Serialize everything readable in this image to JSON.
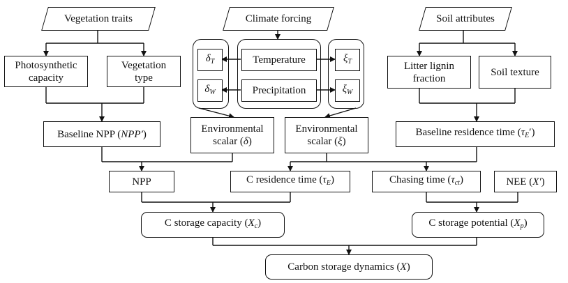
{
  "inputs": {
    "vegetation": "Vegetation traits",
    "climate": "Climate forcing",
    "soil": "Soil attributes"
  },
  "vegetation_children": {
    "photosynthetic": "Photosynthetic capacity",
    "vegetation_type": "Vegetation type"
  },
  "climate_children": {
    "temperature": "Temperature",
    "precipitation": "Precipitation",
    "delta_t": "δ",
    "delta_t_sub": "T",
    "delta_w": "δ",
    "delta_w_sub": "W",
    "xi_t": "ξ",
    "xi_t_sub": "T",
    "xi_w": "ξ",
    "xi_w_sub": "W"
  },
  "soil_children": {
    "lignin": "Litter lignin fraction",
    "texture": "Soil texture"
  },
  "middle": {
    "baseline_npp_prefix": "Baseline NPP (",
    "baseline_npp_var": "NPP′",
    "baseline_npp_suffix": ")",
    "env_scalar_delta_line1": "Environmental",
    "env_scalar_delta_line2_prefix": "scalar (",
    "env_scalar_delta_var": "δ",
    "env_scalar_delta_suffix": ")",
    "env_scalar_xi_line1": "Environmental",
    "env_scalar_xi_line2_prefix": "scalar (",
    "env_scalar_xi_var": "ξ",
    "env_scalar_xi_suffix": ")",
    "baseline_res_prefix": "Baseline residence time (",
    "baseline_res_var": "τ",
    "baseline_res_sub": "E",
    "baseline_res_prime": "′",
    "baseline_res_suffix": ")"
  },
  "lower": {
    "npp": "NPP",
    "c_res_prefix": "C residence time (",
    "c_res_var": "τ",
    "c_res_sub": "E",
    "c_res_suffix": ")",
    "chasing_prefix": "Chasing time (",
    "chasing_var": "τ",
    "chasing_sub": "ct",
    "chasing_suffix": ")",
    "nee_prefix": "NEE (",
    "nee_var": "X′",
    "nee_suffix": ")"
  },
  "storage": {
    "capacity_prefix": "C storage capacity (",
    "capacity_var": "X",
    "capacity_sub": "c",
    "capacity_suffix": ")",
    "potential_prefix": "C storage potential (",
    "potential_var": "X",
    "potential_sub": "p",
    "potential_suffix": ")",
    "dynamics_prefix": "Carbon storage dynamics (",
    "dynamics_var": "X",
    "dynamics_suffix": ")"
  }
}
